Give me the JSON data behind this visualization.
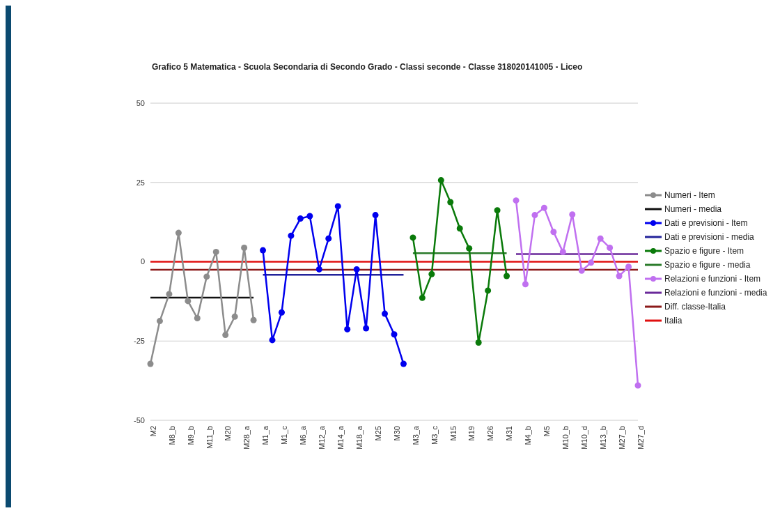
{
  "chart_data": {
    "type": "line",
    "title": "Grafico 5 Matematica - Scuola Secondaria di Secondo Grado - Classi seconde - Classe 318020141005 - Liceo",
    "categories": [
      "M2",
      null,
      "M8_b",
      null,
      "M9_b",
      null,
      "M11_b",
      null,
      "M20",
      null,
      "M28_a",
      null,
      "M1_a",
      null,
      "M1_c",
      null,
      "M6_a",
      null,
      "M12_a",
      null,
      "M14_a",
      null,
      "M18_a",
      null,
      "M25",
      null,
      "M30",
      null,
      "M3_a",
      null,
      "M3_c",
      null,
      "M15",
      null,
      "M19",
      null,
      "M26",
      null,
      "M31",
      null,
      "M4_b",
      null,
      "M5",
      null,
      "M10_b",
      null,
      "M10_d",
      null,
      "M13_b",
      null,
      "M27_b",
      null,
      "M27_d"
    ],
    "series": [
      {
        "name": "Numeri - Item",
        "color": "#8c8c8c",
        "marker": "circle",
        "values": [
          -32.2,
          -18.7,
          -10.2,
          9.1,
          -12.4,
          -17.8,
          -4.7,
          3.1,
          -23.1,
          -17.3,
          4.4,
          -18.4,
          null,
          null,
          null,
          null,
          null,
          null,
          null,
          null,
          null,
          null,
          null,
          null,
          null,
          null,
          null,
          null,
          null,
          null,
          null,
          null,
          null,
          null,
          null,
          null,
          null,
          null,
          null,
          null,
          null,
          null,
          null,
          null,
          null,
          null,
          null,
          null,
          null,
          null,
          null,
          null,
          null
        ]
      },
      {
        "name": "Numeri - media",
        "color": "#111111",
        "marker": "none",
        "values": [
          -11.3,
          -11.3,
          -11.3,
          -11.3,
          -11.3,
          -11.3,
          -11.3,
          -11.3,
          -11.3,
          -11.3,
          -11.3,
          -11.3,
          null,
          null,
          null,
          null,
          null,
          null,
          null,
          null,
          null,
          null,
          null,
          null,
          null,
          null,
          null,
          null,
          null,
          null,
          null,
          null,
          null,
          null,
          null,
          null,
          null,
          null,
          null,
          null,
          null,
          null,
          null,
          null,
          null,
          null,
          null,
          null,
          null,
          null,
          null,
          null,
          null
        ]
      },
      {
        "name": "Dati e previsioni - Item",
        "color": "#0000ee",
        "marker": "circle",
        "values": [
          null,
          null,
          null,
          null,
          null,
          null,
          null,
          null,
          null,
          null,
          null,
          null,
          3.6,
          -24.7,
          -16.0,
          8.2,
          13.6,
          14.4,
          -2.4,
          7.3,
          17.5,
          -21.3,
          -2.4,
          -21.0,
          14.7,
          -16.4,
          -22.9,
          -32.2,
          null,
          null,
          null,
          null,
          null,
          null,
          null,
          null,
          null,
          null,
          null,
          null,
          null,
          null,
          null,
          null,
          null,
          null,
          null,
          null,
          null,
          null,
          null,
          null,
          null
        ]
      },
      {
        "name": "Dati e previsioni - media",
        "color": "#22229a",
        "marker": "none",
        "values": [
          null,
          null,
          null,
          null,
          null,
          null,
          null,
          null,
          null,
          null,
          null,
          null,
          -4.1,
          -4.1,
          -4.1,
          -4.1,
          -4.1,
          -4.1,
          -4.1,
          -4.1,
          -4.1,
          -4.1,
          -4.1,
          -4.1,
          -4.1,
          -4.1,
          -4.1,
          -4.1,
          null,
          null,
          null,
          null,
          null,
          null,
          null,
          null,
          null,
          null,
          null,
          null,
          null,
          null,
          null,
          null,
          null,
          null,
          null,
          null,
          null,
          null,
          null,
          null,
          null
        ]
      },
      {
        "name": "Spazio e figure - Item",
        "color": "#0a7a0a",
        "marker": "circle",
        "values": [
          null,
          null,
          null,
          null,
          null,
          null,
          null,
          null,
          null,
          null,
          null,
          null,
          null,
          null,
          null,
          null,
          null,
          null,
          null,
          null,
          null,
          null,
          null,
          null,
          null,
          null,
          null,
          null,
          7.6,
          -11.4,
          -3.9,
          25.7,
          18.8,
          10.5,
          4.2,
          -25.5,
          -9.1,
          16.2,
          -4.5,
          null,
          null,
          null,
          null,
          null,
          null,
          null,
          null,
          null,
          null,
          null,
          null,
          null,
          null
        ]
      },
      {
        "name": "Spazio e figure - media",
        "color": "#2a7a2a",
        "marker": "none",
        "values": [
          null,
          null,
          null,
          null,
          null,
          null,
          null,
          null,
          null,
          null,
          null,
          null,
          null,
          null,
          null,
          null,
          null,
          null,
          null,
          null,
          null,
          null,
          null,
          null,
          null,
          null,
          null,
          null,
          2.7,
          2.7,
          2.7,
          2.7,
          2.7,
          2.7,
          2.7,
          2.7,
          2.7,
          2.7,
          2.7,
          null,
          null,
          null,
          null,
          null,
          null,
          null,
          null,
          null,
          null,
          null,
          null,
          null,
          null
        ]
      },
      {
        "name": "Relazioni e funzioni - Item",
        "color": "#c070f0",
        "marker": "circle",
        "values": [
          null,
          null,
          null,
          null,
          null,
          null,
          null,
          null,
          null,
          null,
          null,
          null,
          null,
          null,
          null,
          null,
          null,
          null,
          null,
          null,
          null,
          null,
          null,
          null,
          null,
          null,
          null,
          null,
          null,
          null,
          null,
          null,
          null,
          null,
          null,
          null,
          null,
          null,
          null,
          19.3,
          -7.1,
          14.7,
          17.0,
          9.4,
          3.1,
          14.9,
          -2.8,
          -0.3,
          7.3,
          4.4,
          -4.5,
          -1.6,
          -39.0
        ]
      },
      {
        "name": "Relazioni e funzioni - media",
        "color": "#6a2a9a",
        "marker": "none",
        "values": [
          null,
          null,
          null,
          null,
          null,
          null,
          null,
          null,
          null,
          null,
          null,
          null,
          null,
          null,
          null,
          null,
          null,
          null,
          null,
          null,
          null,
          null,
          null,
          null,
          null,
          null,
          null,
          null,
          null,
          null,
          null,
          null,
          null,
          null,
          null,
          null,
          null,
          null,
          null,
          2.4,
          2.4,
          2.4,
          2.4,
          2.4,
          2.4,
          2.4,
          2.4,
          2.4,
          2.4,
          2.4,
          2.4,
          2.4,
          2.4
        ]
      },
      {
        "name": "Diff. classe-Italia",
        "color": "#8b1a1a",
        "marker": "none",
        "values": [
          -2.5,
          -2.5,
          -2.5,
          -2.5,
          -2.5,
          -2.5,
          -2.5,
          -2.5,
          -2.5,
          -2.5,
          -2.5,
          -2.5,
          -2.5,
          -2.5,
          -2.5,
          -2.5,
          -2.5,
          -2.5,
          -2.5,
          -2.5,
          -2.5,
          -2.5,
          -2.5,
          -2.5,
          -2.5,
          -2.5,
          -2.5,
          -2.5,
          -2.5,
          -2.5,
          -2.5,
          -2.5,
          -2.5,
          -2.5,
          -2.5,
          -2.5,
          -2.5,
          -2.5,
          -2.5,
          -2.5,
          -2.5,
          -2.5,
          -2.5,
          -2.5,
          -2.5,
          -2.5,
          -2.5,
          -2.5,
          -2.5,
          -2.5,
          -2.5,
          -2.5,
          -2.5
        ]
      },
      {
        "name": "Italia",
        "color": "#e01010",
        "marker": "none",
        "values": [
          0,
          0,
          0,
          0,
          0,
          0,
          0,
          0,
          0,
          0,
          0,
          0,
          0,
          0,
          0,
          0,
          0,
          0,
          0,
          0,
          0,
          0,
          0,
          0,
          0,
          0,
          0,
          0,
          0,
          0,
          0,
          0,
          0,
          0,
          0,
          0,
          0,
          0,
          0,
          0,
          0,
          0,
          0,
          0,
          0,
          0,
          0,
          0,
          0,
          0,
          0,
          0,
          0
        ]
      }
    ],
    "ylim": [
      -50,
      50
    ],
    "yticks": [
      -50,
      -25,
      0,
      25,
      50
    ],
    "grid": "y",
    "legend": "right",
    "line_style": "solid"
  }
}
